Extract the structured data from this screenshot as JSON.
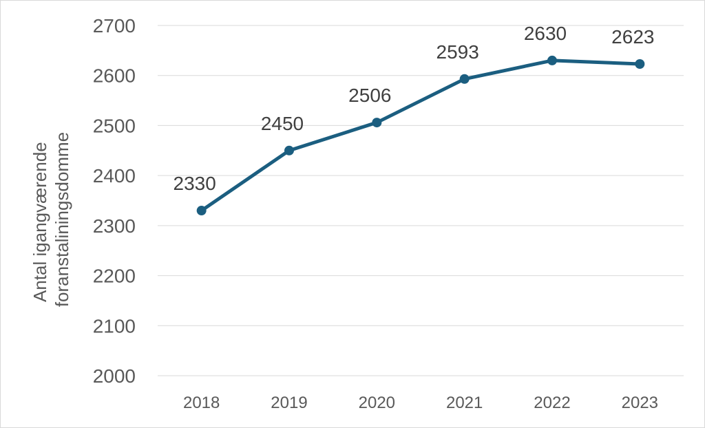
{
  "chart_data": {
    "type": "line",
    "categories": [
      "2018",
      "2019",
      "2020",
      "2021",
      "2022",
      "2023"
    ],
    "series": [
      {
        "values": [
          2330,
          2450,
          2506,
          2593,
          2630,
          2623
        ]
      }
    ],
    "data_labels": [
      "2330",
      "2450",
      "2506",
      "2593",
      "2630",
      "2623"
    ],
    "ylabel": "Antal igangværende foranstaliningsdomme",
    "ylabel_lines": [
      "Antal igangværende",
      "foranstaliningsdomme"
    ],
    "ylim": [
      2000,
      2700
    ],
    "yticks": [
      2000,
      2100,
      2200,
      2300,
      2400,
      2500,
      2600,
      2700
    ],
    "ytick_labels": [
      "2000",
      "2100",
      "2200",
      "2300",
      "2400",
      "2500",
      "2600",
      "2700"
    ],
    "grid": true,
    "legend": "none",
    "colors": {
      "line": "#1b5e80",
      "grid": "#d9d9d9",
      "tick_text": "#595959",
      "label_text": "#404040"
    }
  }
}
